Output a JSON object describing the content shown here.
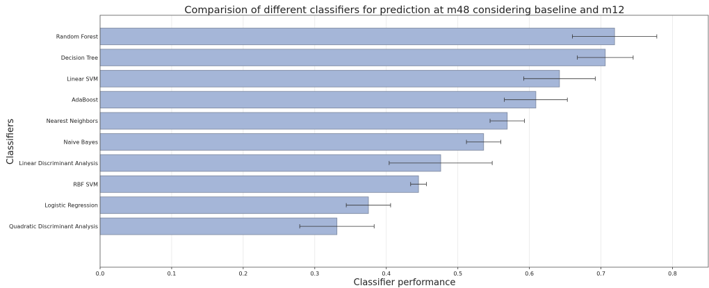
{
  "chart_data": {
    "type": "bar",
    "orientation": "horizontal",
    "title": "Comparision of different classifiers for prediction at m48 considering baseline and m12",
    "xlabel": "Classifier performance",
    "ylabel": "Classifiers",
    "xlim": [
      0,
      0.85
    ],
    "xticks": [
      "0.0",
      "0.1",
      "0.2",
      "0.3",
      "0.4",
      "0.5",
      "0.6",
      "0.7",
      "0.8"
    ],
    "grid": true,
    "colors": {
      "bar": "#a5b6d8",
      "bar_edge": "#7a869c",
      "error_bar": "#333333"
    },
    "categories": [
      "Random Forest",
      "Decision Tree",
      "Linear SVM",
      "AdaBoost",
      "Nearest Neighbors",
      "Naive Bayes",
      "Linear Discriminant Analysis",
      "RBF SVM",
      "Logistic Regression",
      "Quadratic Discriminant Analysis"
    ],
    "values": [
      0.719,
      0.706,
      0.642,
      0.609,
      0.569,
      0.536,
      0.476,
      0.445,
      0.375,
      0.331
    ],
    "errors": [
      0.059,
      0.039,
      0.05,
      0.044,
      0.024,
      0.024,
      0.072,
      0.011,
      0.031,
      0.052
    ]
  }
}
